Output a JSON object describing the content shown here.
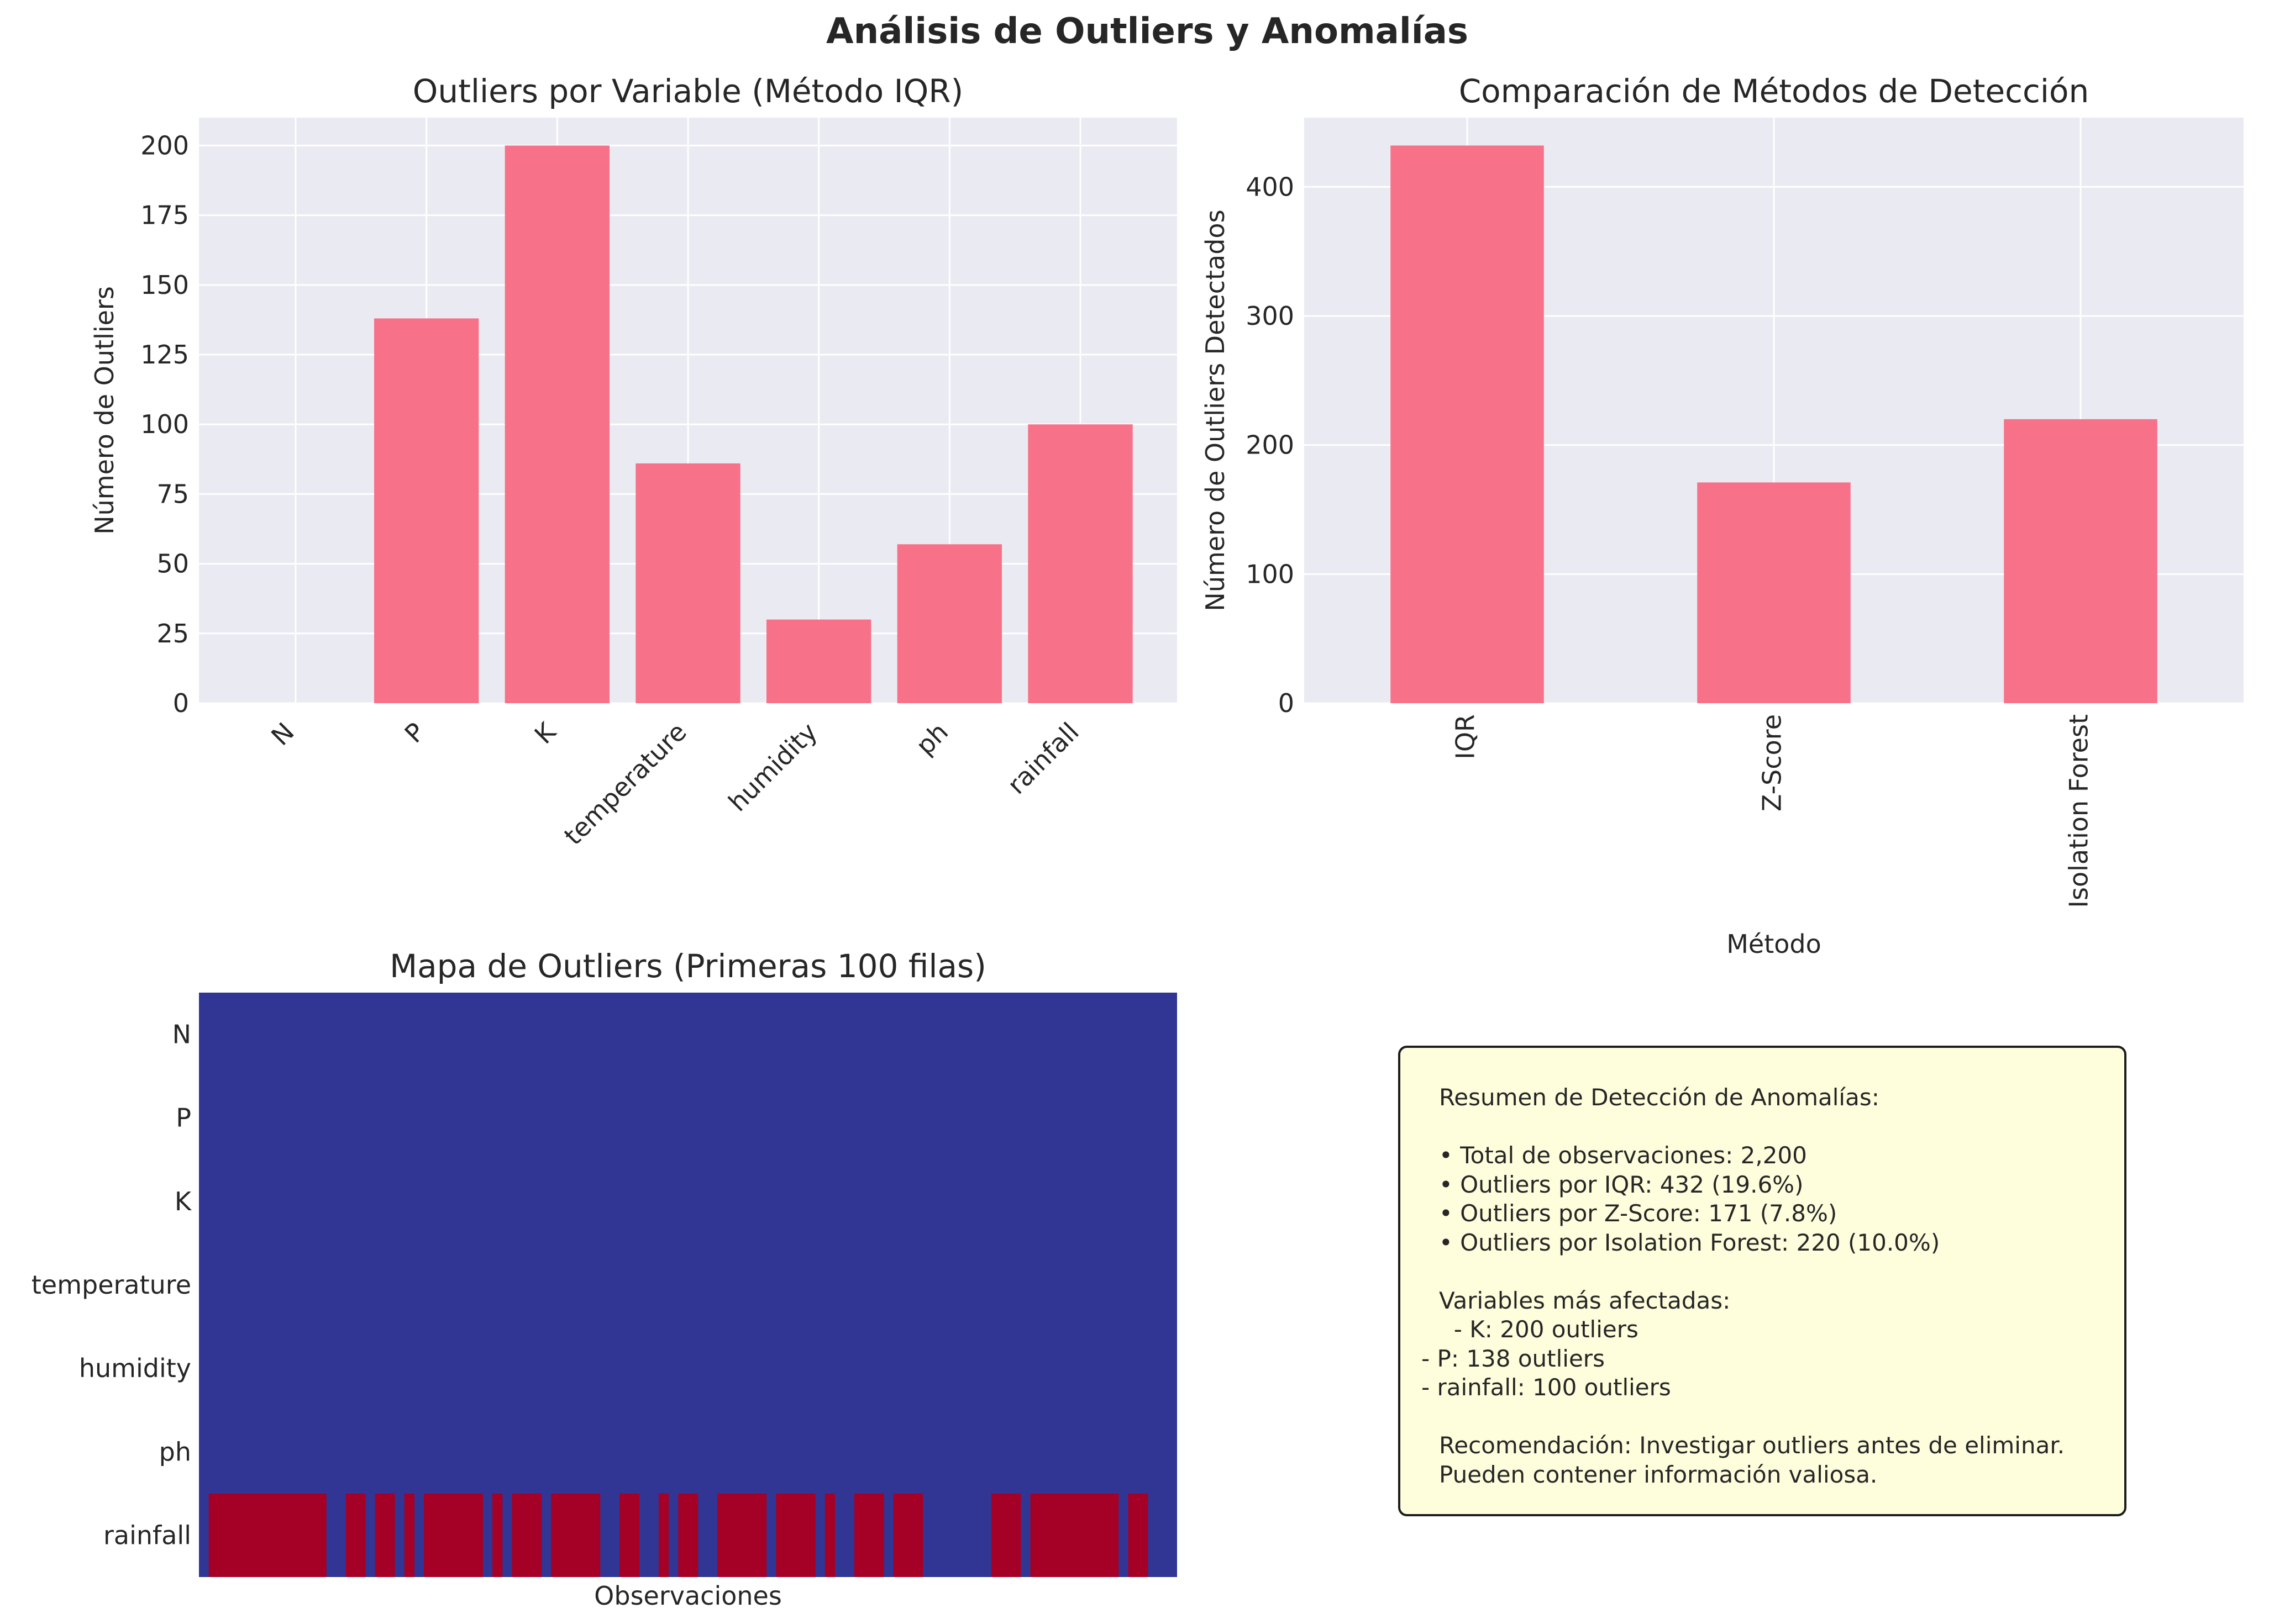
{
  "figure_title": "Análisis de Outliers y Anomalías",
  "colors": {
    "panel_bg": "#eaeaf2",
    "grid": "#ffffff",
    "bar": "#f77189",
    "heatmap_false": "#313695",
    "heatmap_true": "#a50026",
    "text": "#262626",
    "summary_bg": "#fefedd"
  },
  "chart_data": [
    {
      "type": "bar",
      "title": "Outliers por Variable (Método IQR)",
      "xlabel": "",
      "ylabel": "Número de Outliers",
      "categories": [
        "N",
        "P",
        "K",
        "temperature",
        "humidity",
        "ph",
        "rainfall"
      ],
      "values": [
        0,
        138,
        200,
        86,
        30,
        57,
        100
      ],
      "ylim": [
        0,
        210
      ],
      "yticks": [
        0,
        25,
        50,
        75,
        100,
        125,
        150,
        175,
        200
      ],
      "grid": true
    },
    {
      "type": "bar",
      "title": "Comparación de Métodos de Detección",
      "xlabel": "Método",
      "ylabel": "Número de Outliers Detectados",
      "categories": [
        "IQR",
        "Z-Score",
        "Isolation Forest"
      ],
      "values": [
        432,
        171,
        220
      ],
      "ylim": [
        0,
        453.6
      ],
      "yticks": [
        0,
        100,
        200,
        300,
        400
      ],
      "grid": true
    },
    {
      "type": "heatmap",
      "title": "Mapa de Outliers (Primeras 100 filas)",
      "xlabel": "Observaciones",
      "ylabel": "",
      "rows": [
        "N",
        "P",
        "K",
        "temperature",
        "humidity",
        "ph",
        "rainfall"
      ],
      "columns": 100,
      "outlier_columns": {
        "N": [],
        "P": [],
        "K": [],
        "temperature": [],
        "humidity": [],
        "ph": [],
        "rainfall": [
          1,
          2,
          3,
          4,
          5,
          6,
          7,
          8,
          9,
          10,
          11,
          12,
          15,
          16,
          18,
          19,
          21,
          23,
          24,
          25,
          26,
          27,
          28,
          30,
          32,
          33,
          34,
          36,
          37,
          38,
          39,
          40,
          43,
          44,
          47,
          49,
          50,
          53,
          54,
          55,
          56,
          57,
          59,
          60,
          61,
          62,
          64,
          67,
          68,
          69,
          71,
          72,
          73,
          81,
          82,
          83,
          85,
          86,
          87,
          88,
          89,
          90,
          91,
          92,
          93,
          95,
          96
        ]
      }
    }
  ],
  "summary": {
    "lines": [
      "Resumen de Detección de Anomalías:",
      "",
      "• Total de observaciones: 2,200",
      "• Outliers por IQR: 432 (19.6%)",
      "• Outliers por Z-Score: 171 (7.8%)",
      "• Outliers por Isolation Forest: 220 (10.0%)",
      "",
      "Variables más afectadas:",
      "  - K: 200 outliers",
      "- P: 138 outliers",
      "- rainfall: 100 outliers",
      "",
      "Recomendación: Investigar outliers antes de eliminar.",
      "Pueden contener información valiosa."
    ]
  }
}
